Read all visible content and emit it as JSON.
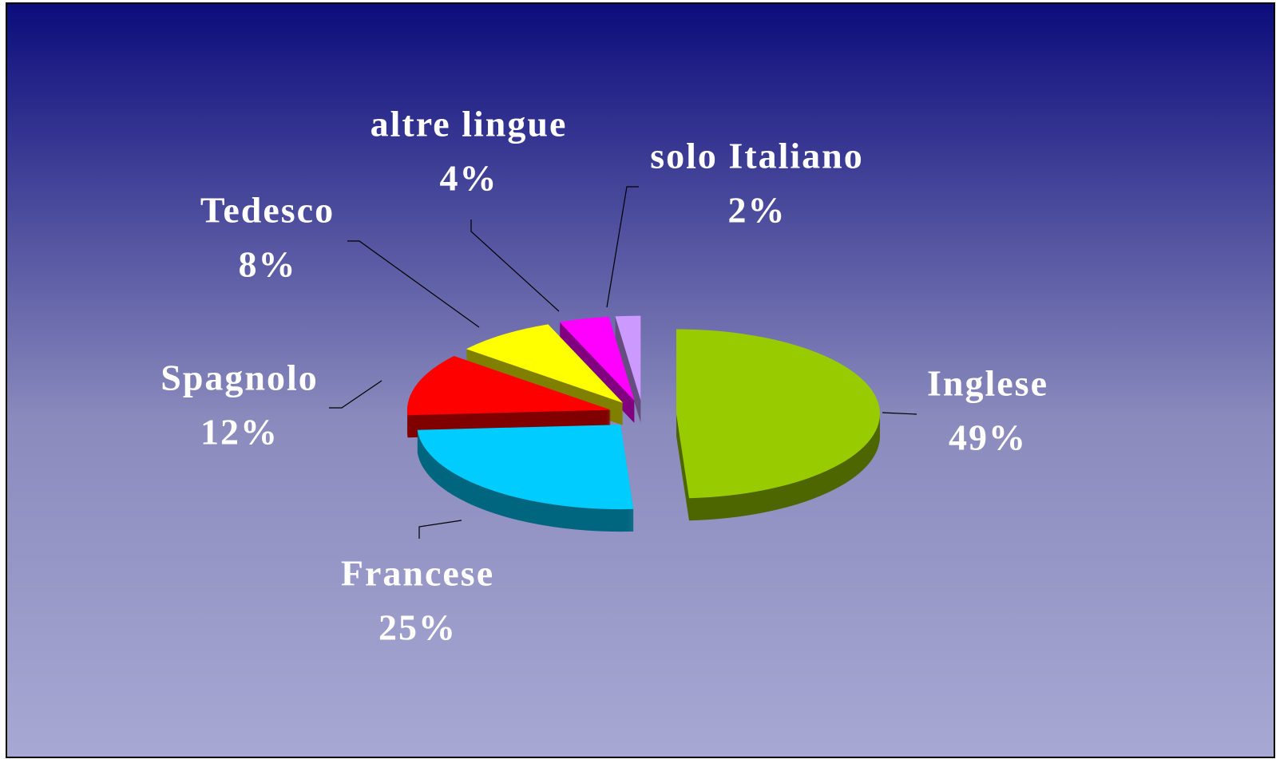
{
  "chart_data": {
    "type": "pie",
    "pie_3d": true,
    "categories": [
      "Inglese",
      "Francese",
      "Spagnolo",
      "Tedesco",
      "altre lingue",
      "solo Italiano"
    ],
    "values": [
      49,
      25,
      12,
      8,
      4,
      2
    ],
    "value_labels": [
      "49%",
      "25%",
      "12%",
      "8%",
      "4%",
      "2%"
    ],
    "colors": [
      "#99cc00",
      "#00ccff",
      "#ff0000",
      "#ffff00",
      "#ff00ff",
      "#cc99ff"
    ]
  }
}
